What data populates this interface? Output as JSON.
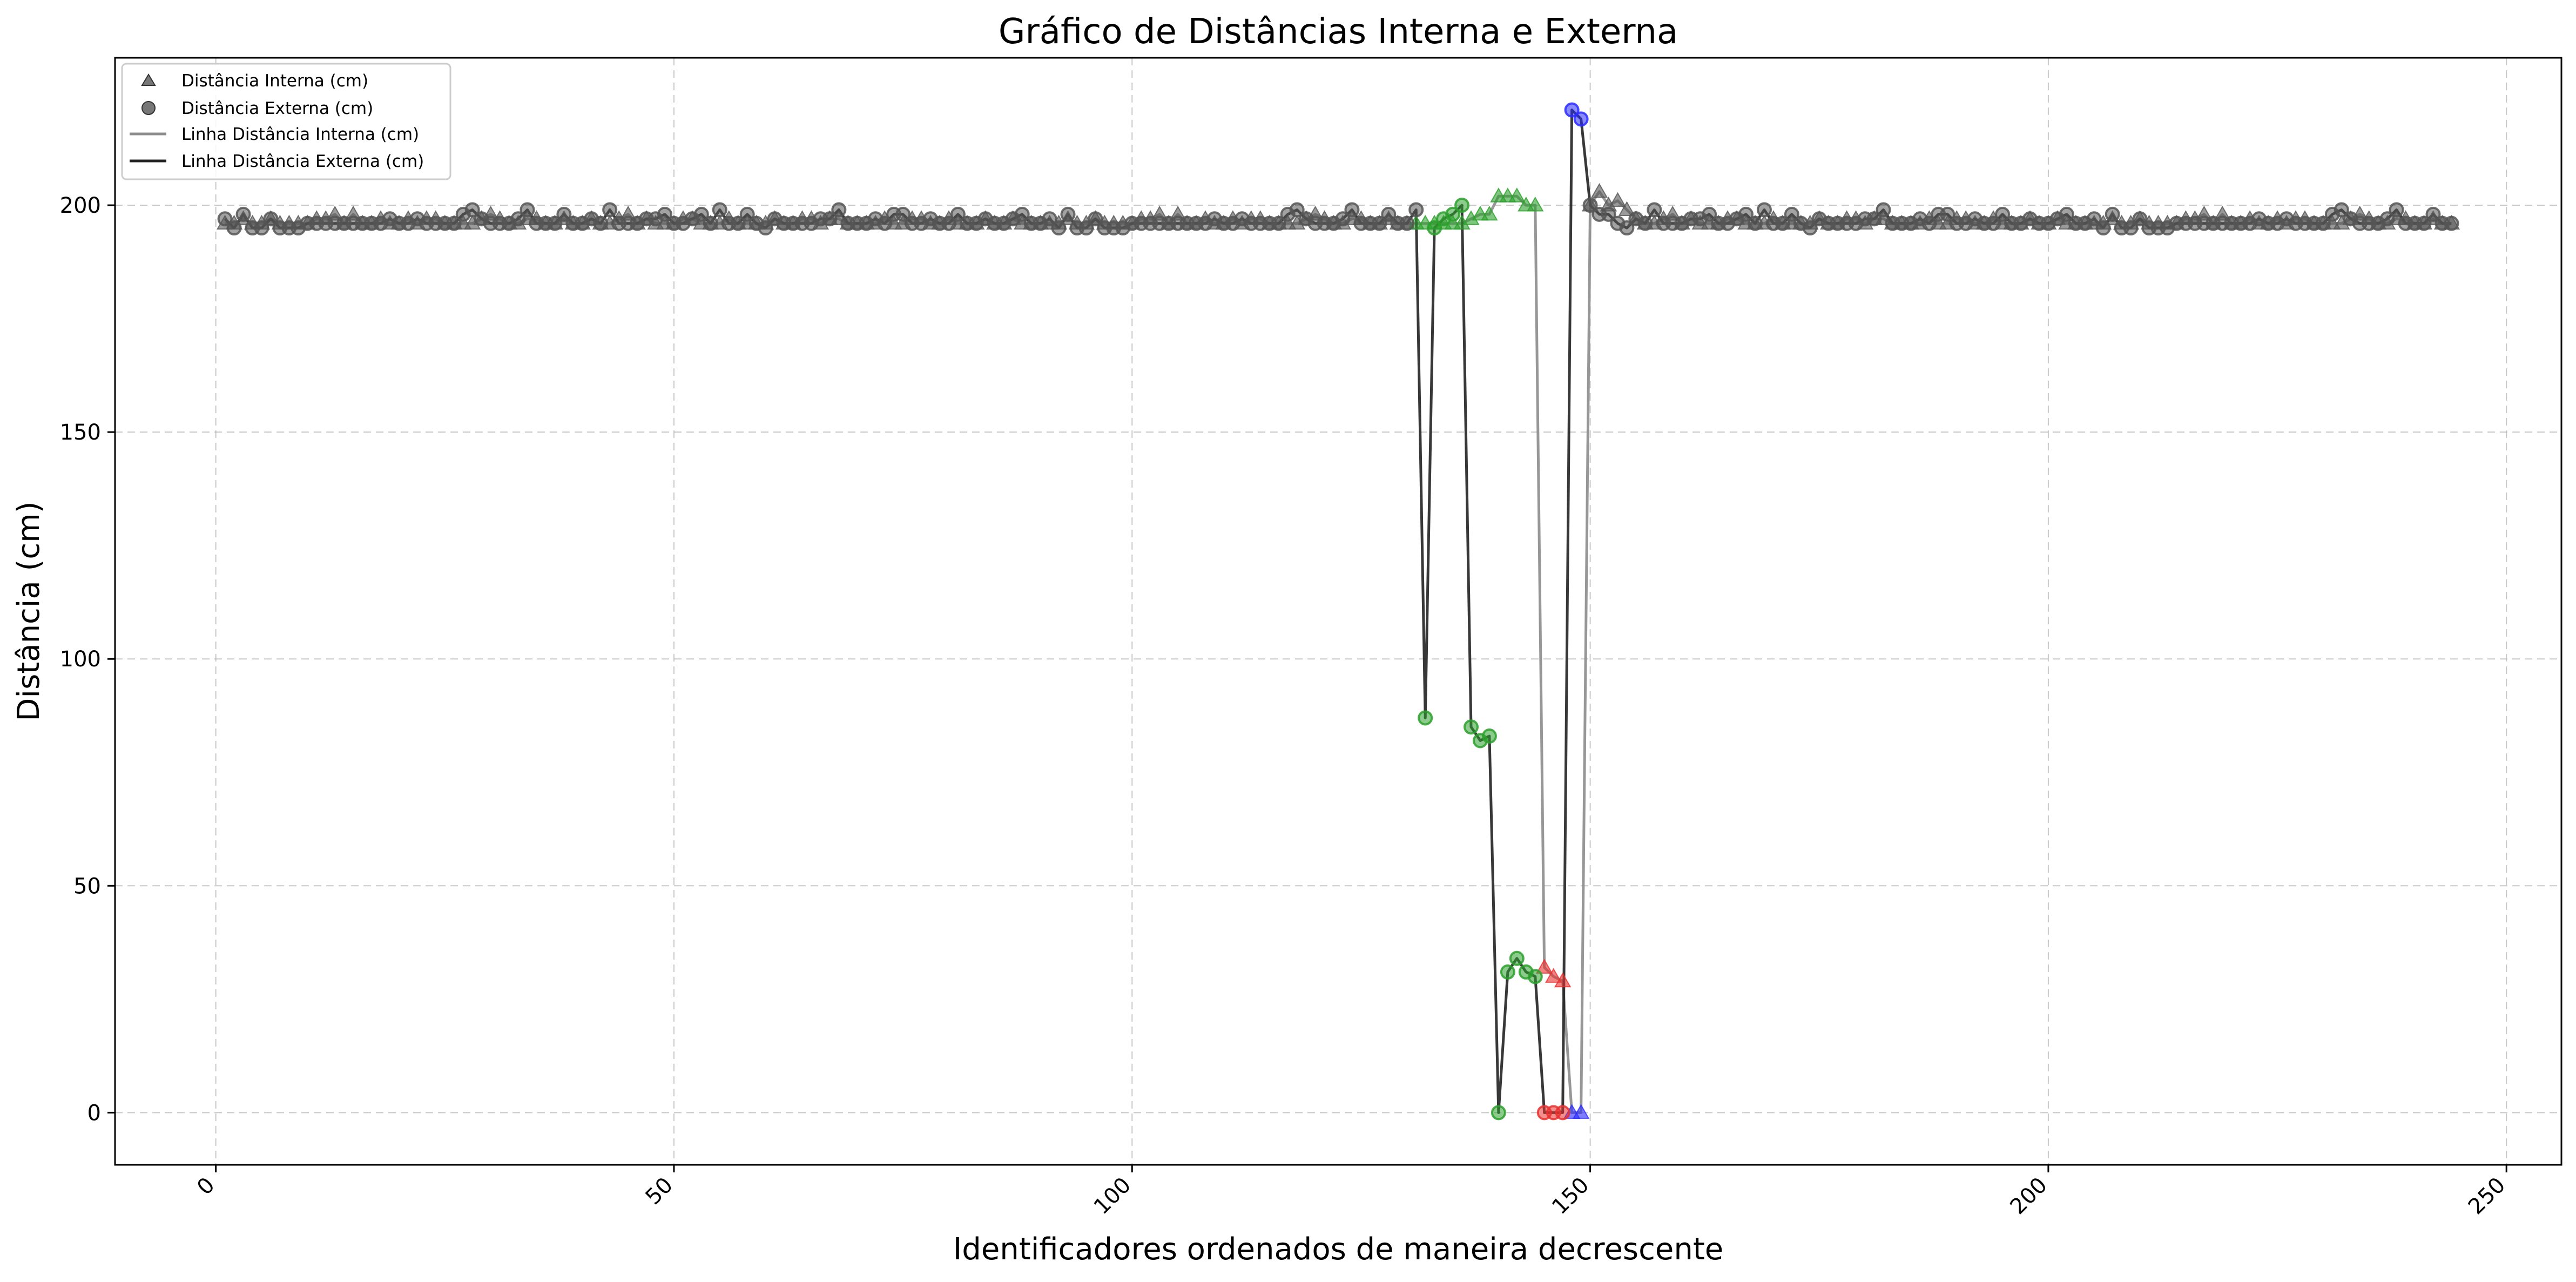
{
  "chart_data": {
    "type": "line",
    "title": "Gráfico de Distâncias Interna e Externa",
    "xlabel": "Identificadores ordenados de maneira decrescente",
    "ylabel": "Distância (cm)",
    "xlim": [
      -11,
      256
    ],
    "ylim": [
      -11.5,
      232.5
    ],
    "xticks": [
      0,
      50,
      100,
      150,
      200,
      250
    ],
    "xtick_labels": [
      "0",
      "50",
      "100",
      "150",
      "200",
      "250"
    ],
    "yticks": [
      0,
      50,
      100,
      150,
      200
    ],
    "ytick_labels": [
      "0",
      "50",
      "100",
      "150",
      "200"
    ],
    "grid": true,
    "legend_position": "top-left",
    "legend": [
      {
        "label": "Distância Interna (cm)",
        "marker": "triangle"
      },
      {
        "label": "Distância Externa (cm)",
        "marker": "circle"
      },
      {
        "label": "Linha Distância Interna (cm)",
        "line": "gray"
      },
      {
        "label": "Linha Distância Externa (cm)",
        "line": "black"
      }
    ],
    "colors": {
      "normal": "#555555",
      "green": "#2ca02c",
      "red": "#e8312f",
      "blue": "#2a2aff",
      "line_interna": "#8c8c8c",
      "line_externa": "#222222"
    },
    "series": [
      {
        "name": "Distância Interna (cm)",
        "x_start": 1,
        "x_end": 244,
        "baseline_values": [
          196,
          196,
          197,
          196,
          196,
          197,
          196,
          196,
          196,
          196,
          197,
          197,
          198,
          196,
          198,
          196,
          196,
          197,
          196,
          196,
          197,
          196,
          197,
          197,
          196,
          196,
          196,
          196,
          197,
          198,
          197,
          196,
          196,
          197,
          197,
          196,
          196,
          197,
          196,
          196,
          197,
          196,
          196,
          197,
          198,
          196,
          197,
          196,
          196,
          196,
          197,
          197,
          196,
          196,
          196,
          197,
          196,
          196,
          196,
          196,
          197,
          196,
          196,
          197,
          197,
          196,
          197,
          197,
          196,
          196,
          196,
          196,
          197,
          196,
          196,
          197,
          197,
          196,
          196,
          197,
          196,
          196,
          196,
          197,
          196,
          196,
          197,
          196,
          196,
          196
        ],
        "special": [
          {
            "x": 131,
            "y": 196,
            "color": "green"
          },
          {
            "x": 132,
            "y": 196,
            "color": "green"
          },
          {
            "x": 133,
            "y": 196,
            "color": "green"
          },
          {
            "x": 134,
            "y": 196,
            "color": "green"
          },
          {
            "x": 135,
            "y": 196,
            "color": "green"
          },
          {
            "x": 136,
            "y": 196,
            "color": "green"
          },
          {
            "x": 137,
            "y": 197,
            "color": "green"
          },
          {
            "x": 138,
            "y": 198,
            "color": "green"
          },
          {
            "x": 139,
            "y": 198,
            "color": "green"
          },
          {
            "x": 140,
            "y": 202,
            "color": "green"
          },
          {
            "x": 141,
            "y": 202,
            "color": "green"
          },
          {
            "x": 142,
            "y": 202,
            "color": "green"
          },
          {
            "x": 143,
            "y": 200,
            "color": "green"
          },
          {
            "x": 144,
            "y": 200,
            "color": "green"
          },
          {
            "x": 145,
            "y": 32,
            "color": "red"
          },
          {
            "x": 146,
            "y": 30,
            "color": "red"
          },
          {
            "x": 147,
            "y": 29,
            "color": "red"
          },
          {
            "x": 148,
            "y": 0,
            "color": "blue"
          },
          {
            "x": 149,
            "y": 0,
            "color": "blue"
          },
          {
            "x": 150,
            "y": 200,
            "color": "normal"
          },
          {
            "x": 151,
            "y": 203,
            "color": "normal"
          },
          {
            "x": 152,
            "y": 200,
            "color": "normal"
          },
          {
            "x": 153,
            "y": 201,
            "color": "normal"
          },
          {
            "x": 154,
            "y": 199,
            "color": "normal"
          }
        ]
      },
      {
        "name": "Distância Externa (cm)",
        "x_start": 1,
        "x_end": 244,
        "baseline_values": [
          197,
          195,
          198,
          195,
          195,
          197,
          195,
          195,
          195,
          196,
          196,
          196,
          196,
          196,
          196,
          196,
          196,
          196,
          197,
          196,
          196,
          197,
          196,
          196,
          196,
          196,
          198,
          199,
          197,
          196,
          196,
          196,
          197,
          199,
          196,
          196,
          196,
          198,
          196,
          196,
          197,
          196,
          199,
          196,
          196,
          196,
          197,
          197,
          198,
          196,
          196,
          197,
          198,
          196,
          199,
          196,
          196,
          198,
          196,
          195,
          197,
          196,
          196,
          196,
          196,
          197,
          197,
          199,
          196,
          196,
          196,
          197,
          196,
          198,
          198,
          196,
          196,
          197,
          196,
          196,
          198,
          196,
          196,
          197,
          196,
          196,
          197,
          198,
          196,
          196
        ],
        "special": [
          {
            "x": 131,
            "y": 199,
            "color": "normal"
          },
          {
            "x": 132,
            "y": 87,
            "color": "green"
          },
          {
            "x": 133,
            "y": 195,
            "color": "green"
          },
          {
            "x": 134,
            "y": 197,
            "color": "green"
          },
          {
            "x": 135,
            "y": 198,
            "color": "green"
          },
          {
            "x": 136,
            "y": 200,
            "color": "green"
          },
          {
            "x": 137,
            "y": 85,
            "color": "green"
          },
          {
            "x": 138,
            "y": 82,
            "color": "green"
          },
          {
            "x": 139,
            "y": 83,
            "color": "green"
          },
          {
            "x": 140,
            "y": 0,
            "color": "green"
          },
          {
            "x": 141,
            "y": 31,
            "color": "green"
          },
          {
            "x": 142,
            "y": 34,
            "color": "green"
          },
          {
            "x": 143,
            "y": 31,
            "color": "green"
          },
          {
            "x": 144,
            "y": 30,
            "color": "green"
          },
          {
            "x": 145,
            "y": 0,
            "color": "red"
          },
          {
            "x": 146,
            "y": 0,
            "color": "red"
          },
          {
            "x": 147,
            "y": 0,
            "color": "red"
          },
          {
            "x": 148,
            "y": 221,
            "color": "blue"
          },
          {
            "x": 149,
            "y": 219,
            "color": "blue"
          },
          {
            "x": 150,
            "y": 200,
            "color": "normal"
          },
          {
            "x": 151,
            "y": 198,
            "color": "normal"
          },
          {
            "x": 152,
            "y": 198,
            "color": "normal"
          },
          {
            "x": 153,
            "y": 196,
            "color": "normal"
          },
          {
            "x": 154,
            "y": 195,
            "color": "normal"
          }
        ]
      }
    ]
  }
}
